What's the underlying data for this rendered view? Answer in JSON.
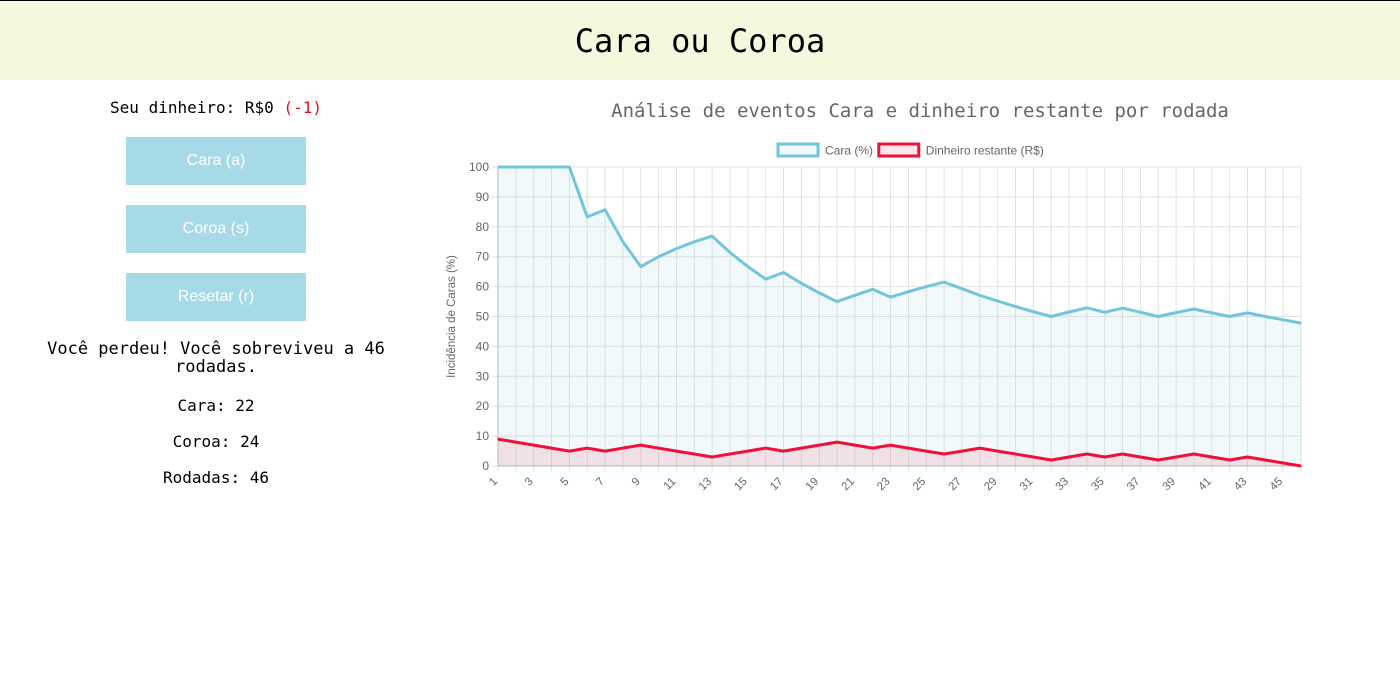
{
  "header": {
    "title": "Cara ou Coroa"
  },
  "status": {
    "money_label": "Seu dinheiro: R$0",
    "money_delta": "(-1)"
  },
  "buttons": {
    "heads": "Cara (a)",
    "tails": "Coroa (s)",
    "reset": "Resetar (r)"
  },
  "result": {
    "message": "Você perdeu! Você sobreviveu a 46 rodadas.",
    "heads_count": "Cara: 22",
    "tails_count": "Coroa: 24",
    "rounds_count": "Rodadas: 46"
  },
  "colors": {
    "header_bg": "#f5f8dc",
    "button_bg": "#a6dae7",
    "series_cara": "#73c6d9",
    "series_money": "#f0103a",
    "delta_text": "#e3101a"
  },
  "chart_data": {
    "type": "line",
    "title": "Análise de eventos Cara e dinheiro restante por rodada",
    "ylabel": "Incidência de Caras (%)",
    "xlabel": "",
    "ylim": [
      0,
      100
    ],
    "yticks": [
      0,
      10,
      20,
      30,
      40,
      50,
      60,
      70,
      80,
      90,
      100
    ],
    "x": [
      1,
      2,
      3,
      4,
      5,
      6,
      7,
      8,
      9,
      10,
      11,
      12,
      13,
      14,
      15,
      16,
      17,
      18,
      19,
      20,
      21,
      22,
      23,
      24,
      25,
      26,
      27,
      28,
      29,
      30,
      31,
      32,
      33,
      34,
      35,
      36,
      37,
      38,
      39,
      40,
      41,
      42,
      43,
      44,
      45,
      46
    ],
    "xtick_labels": [
      "1",
      "3",
      "5",
      "7",
      "9",
      "11",
      "13",
      "15",
      "17",
      "19",
      "21",
      "23",
      "25",
      "27",
      "29",
      "31",
      "33",
      "35",
      "37",
      "39",
      "41",
      "43",
      "45"
    ],
    "grid": true,
    "legend_position": "top",
    "series": [
      {
        "name": "Cara (%)",
        "values": [
          100,
          100,
          100,
          100,
          100,
          83.3,
          85.7,
          75,
          66.7,
          70,
          72.7,
          75,
          76.9,
          71.4,
          66.7,
          62.5,
          64.7,
          61.1,
          57.9,
          55,
          57.1,
          59.1,
          56.5,
          58.3,
          60,
          61.5,
          59.3,
          57.1,
          55.2,
          53.3,
          51.6,
          50,
          51.5,
          52.9,
          51.4,
          52.8,
          51.4,
          50,
          51.3,
          52.5,
          51.2,
          50,
          51.2,
          50,
          48.9,
          47.8
        ]
      },
      {
        "name": "Dinheiro restante (R$)",
        "values": [
          9,
          8,
          7,
          6,
          5,
          6,
          5,
          6,
          7,
          6,
          5,
          4,
          3,
          4,
          5,
          6,
          5,
          6,
          7,
          8,
          7,
          6,
          7,
          6,
          5,
          4,
          5,
          6,
          5,
          4,
          3,
          2,
          3,
          4,
          3,
          4,
          3,
          2,
          3,
          4,
          3,
          2,
          3,
          2,
          1,
          0
        ]
      }
    ]
  }
}
